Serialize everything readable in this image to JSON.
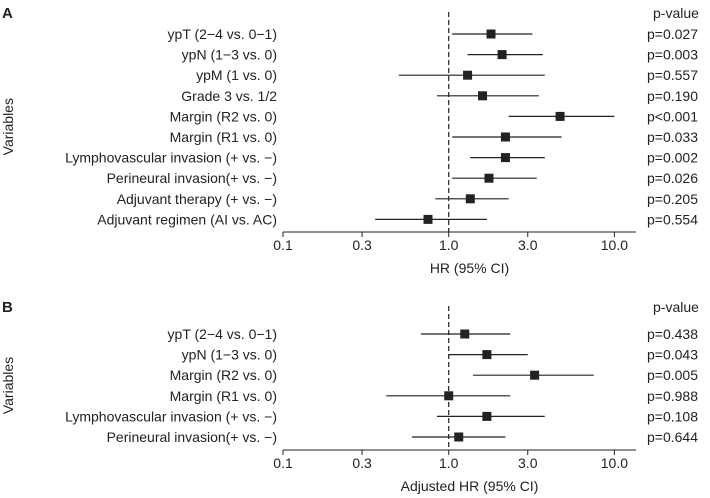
{
  "chart_data": [
    {
      "type": "forest",
      "panel": "A",
      "xscale": "log",
      "xlim": [
        0.1,
        13.5
      ],
      "xticks": [
        0.1,
        0.3,
        1.0,
        3.0,
        10.0
      ],
      "xtick_labels": [
        "0.1",
        "0.3",
        "1.0",
        "3.0",
        "10.0"
      ],
      "xlabel": "HR (95% CI)",
      "ylabel": "Variables",
      "pvalue_header": "p-value",
      "reference_line": 1.0,
      "rows": [
        {
          "label": "ypT (2−4 vs. 0−1)",
          "hr": 1.8,
          "lo": 1.05,
          "hi": 3.2,
          "p": "p=0.027"
        },
        {
          "label": "ypN (1−3 vs. 0)",
          "hr": 2.1,
          "lo": 1.3,
          "hi": 3.7,
          "p": "p=0.003"
        },
        {
          "label": "ypM (1 vs. 0)",
          "hr": 1.3,
          "lo": 0.5,
          "hi": 3.8,
          "p": "p=0.557"
        },
        {
          "label": "Grade 3 vs. 1/2",
          "hr": 1.6,
          "lo": 0.85,
          "hi": 3.5,
          "p": "p=0.190"
        },
        {
          "label": "Margin (R2 vs. 0)",
          "hr": 4.7,
          "lo": 2.3,
          "hi": 10.0,
          "p": "p<0.001"
        },
        {
          "label": "Margin (R1 vs. 0)",
          "hr": 2.2,
          "lo": 1.05,
          "hi": 4.8,
          "p": "p=0.033"
        },
        {
          "label": "Lymphovascular invasion (+ vs. −)",
          "hr": 2.2,
          "lo": 1.35,
          "hi": 3.8,
          "p": "p=0.002"
        },
        {
          "label": "Perineural invasion(+ vs. −)",
          "hr": 1.75,
          "lo": 1.05,
          "hi": 3.4,
          "p": "p=0.026"
        },
        {
          "label": "Adjuvant therapy (+ vs. −)",
          "hr": 1.35,
          "lo": 0.83,
          "hi": 2.3,
          "p": "p=0.205"
        },
        {
          "label": "Adjuvant regimen (AI vs. AC)",
          "hr": 0.75,
          "lo": 0.36,
          "hi": 1.7,
          "p": "p=0.554"
        }
      ]
    },
    {
      "type": "forest",
      "panel": "B",
      "xscale": "log",
      "xlim": [
        0.1,
        13.5
      ],
      "xticks": [
        0.1,
        0.3,
        1.0,
        3.0,
        10.0
      ],
      "xtick_labels": [
        "0.1",
        "0.3",
        "1.0",
        "3.0",
        "10.0"
      ],
      "xlabel": "Adjusted HR (95% CI)",
      "ylabel": "Variables",
      "pvalue_header": "p-value",
      "reference_line": 1.0,
      "rows": [
        {
          "label": "ypT (2−4 vs. 0−1)",
          "hr": 1.25,
          "lo": 0.68,
          "hi": 2.35,
          "p": "p=0.438"
        },
        {
          "label": "ypN (1−3 vs. 0)",
          "hr": 1.7,
          "lo": 1.0,
          "hi": 3.0,
          "p": "p=0.043"
        },
        {
          "label": "Margin (R2 vs. 0)",
          "hr": 3.3,
          "lo": 1.4,
          "hi": 7.5,
          "p": "p=0.005"
        },
        {
          "label": "Margin (R1 vs. 0)",
          "hr": 1.0,
          "lo": 0.42,
          "hi": 2.35,
          "p": "p=0.988"
        },
        {
          "label": "Lymphovascular invasion (+ vs. −)",
          "hr": 1.7,
          "lo": 0.85,
          "hi": 3.8,
          "p": "p=0.108"
        },
        {
          "label": "Perineural invasion(+ vs. −)",
          "hr": 1.15,
          "lo": 0.6,
          "hi": 2.2,
          "p": "p=0.644"
        }
      ]
    }
  ]
}
